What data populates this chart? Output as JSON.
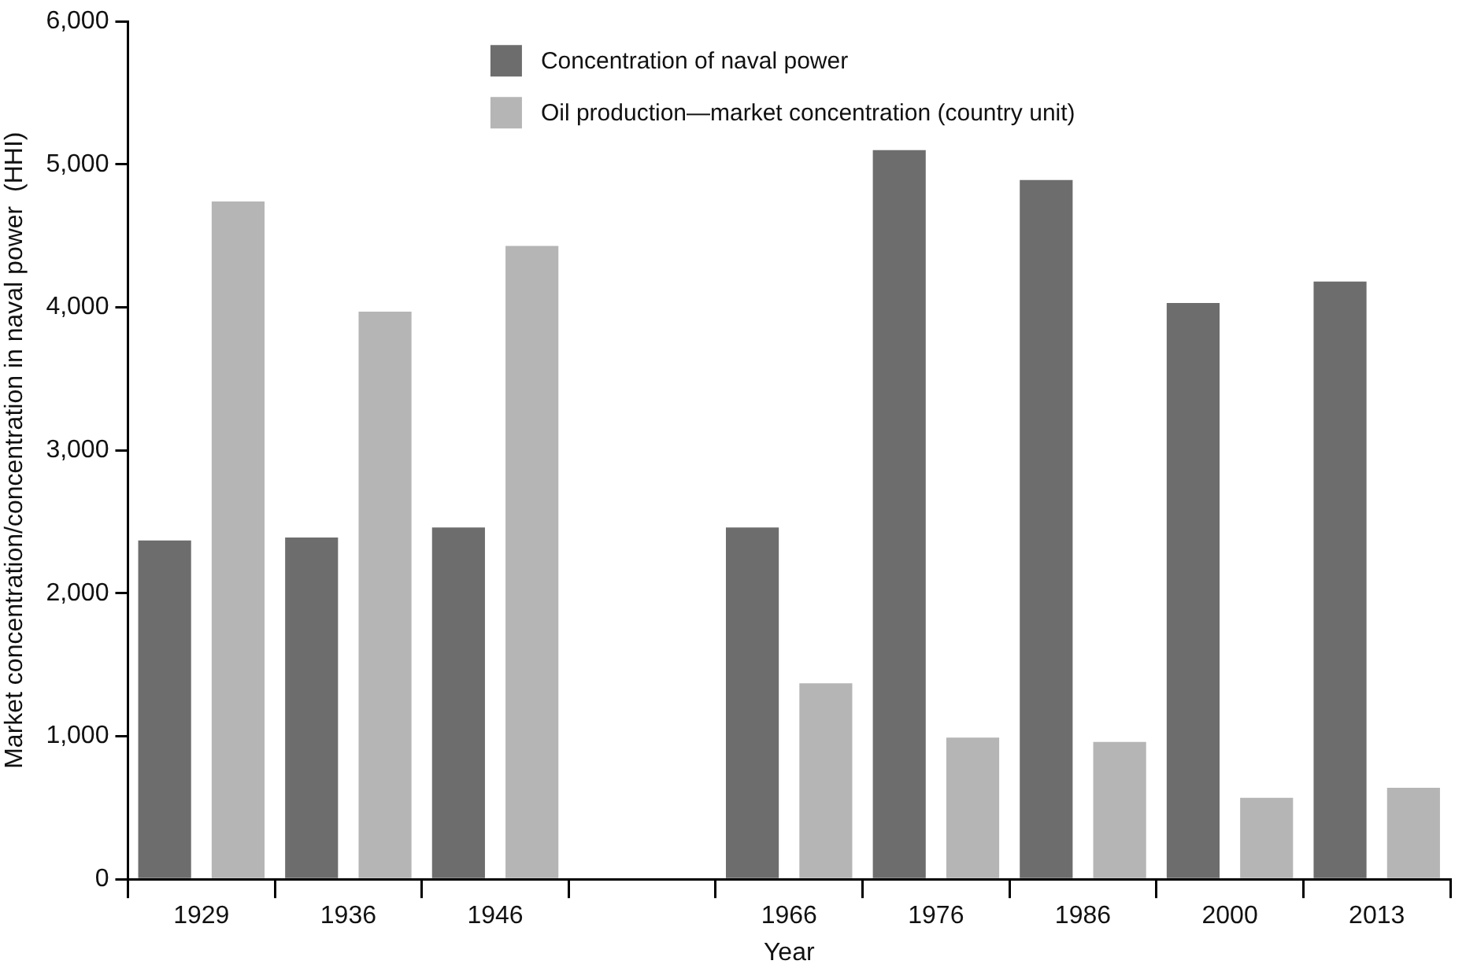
{
  "chart_data": {
    "type": "bar",
    "xlabel": "Year",
    "ylabel": "Market concentration/concentration in naval power  (HHI)",
    "categories": [
      "1929",
      "1936",
      "1946",
      null,
      "1966",
      "1976",
      "1986",
      "2000",
      "2013"
    ],
    "series": [
      {
        "name": "Concentration of naval power",
        "color": "#6d6d6d",
        "values": [
          2370,
          2390,
          2460,
          null,
          2460,
          5100,
          4890,
          4030,
          4180
        ]
      },
      {
        "name": "Oil production—market concentration (country unit)",
        "color": "#b5b5b5",
        "values": [
          4740,
          3970,
          4430,
          null,
          1370,
          990,
          960,
          570,
          640
        ]
      }
    ],
    "ylim": [
      0,
      6000
    ],
    "yticks": [
      {
        "value": 0,
        "label": "0"
      },
      {
        "value": 1000,
        "label": "1,000"
      },
      {
        "value": 2000,
        "label": "2,000"
      },
      {
        "value": 3000,
        "label": "3,000"
      },
      {
        "value": 4000,
        "label": "4,000"
      },
      {
        "value": 5000,
        "label": "5,000"
      },
      {
        "value": 6000,
        "label": "6,000"
      }
    ],
    "grid": false,
    "legend": "top"
  }
}
